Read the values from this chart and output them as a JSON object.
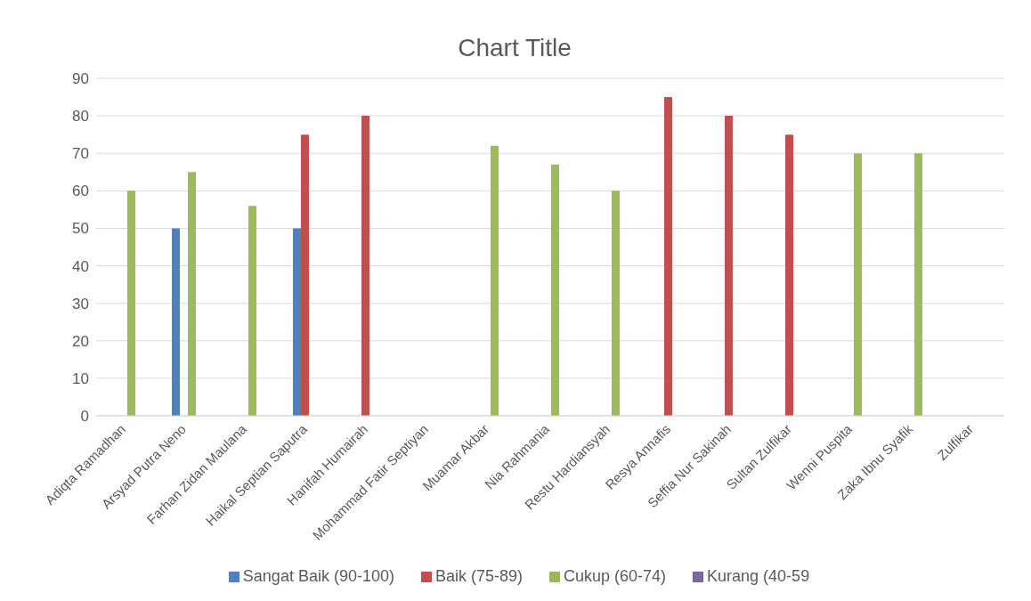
{
  "chart_data": {
    "type": "bar",
    "title": "Chart Title",
    "categories": [
      "Adiqta Ramadhan",
      "Arsyad Putra Neno",
      "Farhan Zidan Maulana",
      "Haikal Septian Saputra",
      "Hanifah Humairah",
      "Mohammad Fatir Septiyan",
      "Muamar Akbar",
      "Nia Rahmania",
      "Restu Hardiansyah",
      "Resya Annafis",
      "Seffia Nur Sakinah",
      "Sultan Zulfikar",
      "Wenni Puspita",
      "Zaka Ibnu Syafik",
      "Zulfikar"
    ],
    "series": [
      {
        "name": "Sangat Baik (90-100)",
        "color": "#4f81bd",
        "values": [
          null,
          50,
          null,
          50,
          null,
          null,
          null,
          null,
          null,
          null,
          null,
          null,
          null,
          null,
          null
        ]
      },
      {
        "name": "Baik (75-89)",
        "color": "#c0504d",
        "values": [
          null,
          null,
          null,
          75,
          80,
          null,
          null,
          null,
          null,
          85,
          80,
          75,
          null,
          null,
          null
        ]
      },
      {
        "name": "Cukup (60-74)",
        "color": "#9bbb59",
        "values": [
          60,
          65,
          56,
          null,
          null,
          null,
          72,
          67,
          60,
          null,
          null,
          null,
          70,
          70,
          null
        ]
      },
      {
        "name": "Kurang (40-59",
        "color": "#8064a2",
        "values": [
          null,
          null,
          null,
          null,
          null,
          null,
          null,
          null,
          null,
          null,
          null,
          null,
          null,
          null,
          null
        ]
      }
    ],
    "ylim": [
      0,
      90
    ],
    "yticks": [
      0,
      10,
      20,
      30,
      40,
      50,
      60,
      70,
      80,
      90
    ],
    "grid": "y",
    "legend": "bottom"
  }
}
